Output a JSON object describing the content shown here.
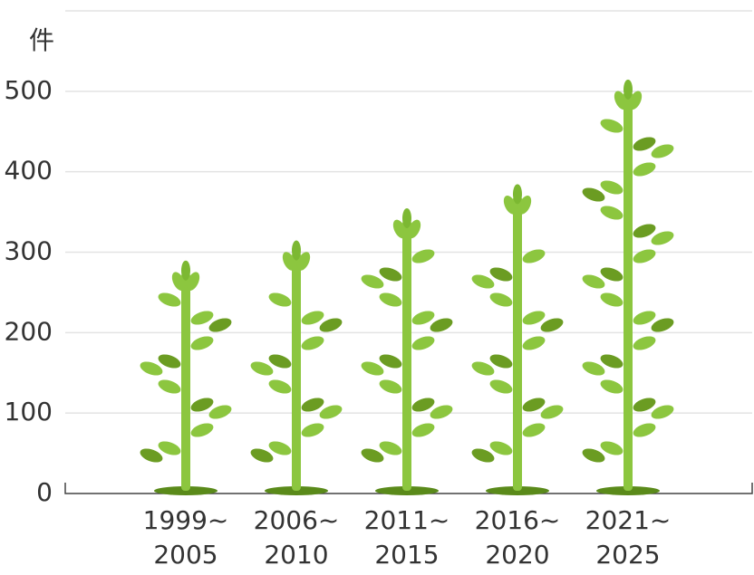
{
  "chart_data": {
    "type": "plant",
    "y_unit": "件",
    "categories": [
      "1999~\n2005",
      "2006~\n2010",
      "2011~\n2015",
      "2016~\n2020",
      "2021~\n2025"
    ],
    "values": [
      275,
      300,
      340,
      370,
      500
    ],
    "color": "#8cc63f",
    "ylim": [
      0,
      600
    ],
    "yticks": [
      0,
      100,
      200,
      300,
      400,
      500
    ],
    "grid": true
  }
}
